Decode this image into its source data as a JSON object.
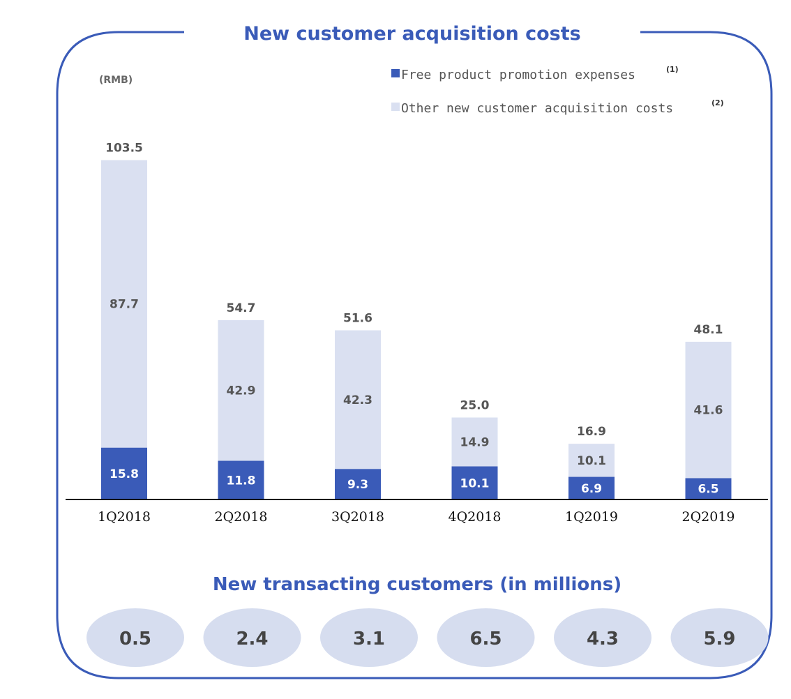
{
  "chart_data": {
    "type": "bar",
    "stacked": true,
    "title": "New customer acquisition costs",
    "unit_label": "(RMB)",
    "categories": [
      "1Q2018",
      "2Q2018",
      "3Q2018",
      "4Q2018",
      "1Q2019",
      "2Q2019"
    ],
    "series": [
      {
        "name": "Free product promotion expenses",
        "footnote": "(1)",
        "color": "#3a5bb8",
        "values": [
          15.8,
          11.8,
          9.3,
          10.1,
          6.9,
          6.5
        ]
      },
      {
        "name": "Other new customer acquisition costs",
        "footnote": "(2)",
        "color": "#dae0f1",
        "values": [
          87.7,
          42.9,
          42.3,
          14.9,
          10.1,
          41.6
        ]
      }
    ],
    "totals": [
      "103.5",
      "54.7",
      "51.6",
      "25.0",
      "16.9",
      "48.1"
    ],
    "legend_position": "top-right",
    "grid": false
  },
  "customers": {
    "title": "New transacting customers (in millions)",
    "values": [
      "0.5",
      "2.4",
      "3.1",
      "6.5",
      "4.3",
      "5.9"
    ]
  },
  "colors": {
    "accent": "#3a5bb8",
    "light": "#dae0f1",
    "bubble": "#d6ddef"
  }
}
